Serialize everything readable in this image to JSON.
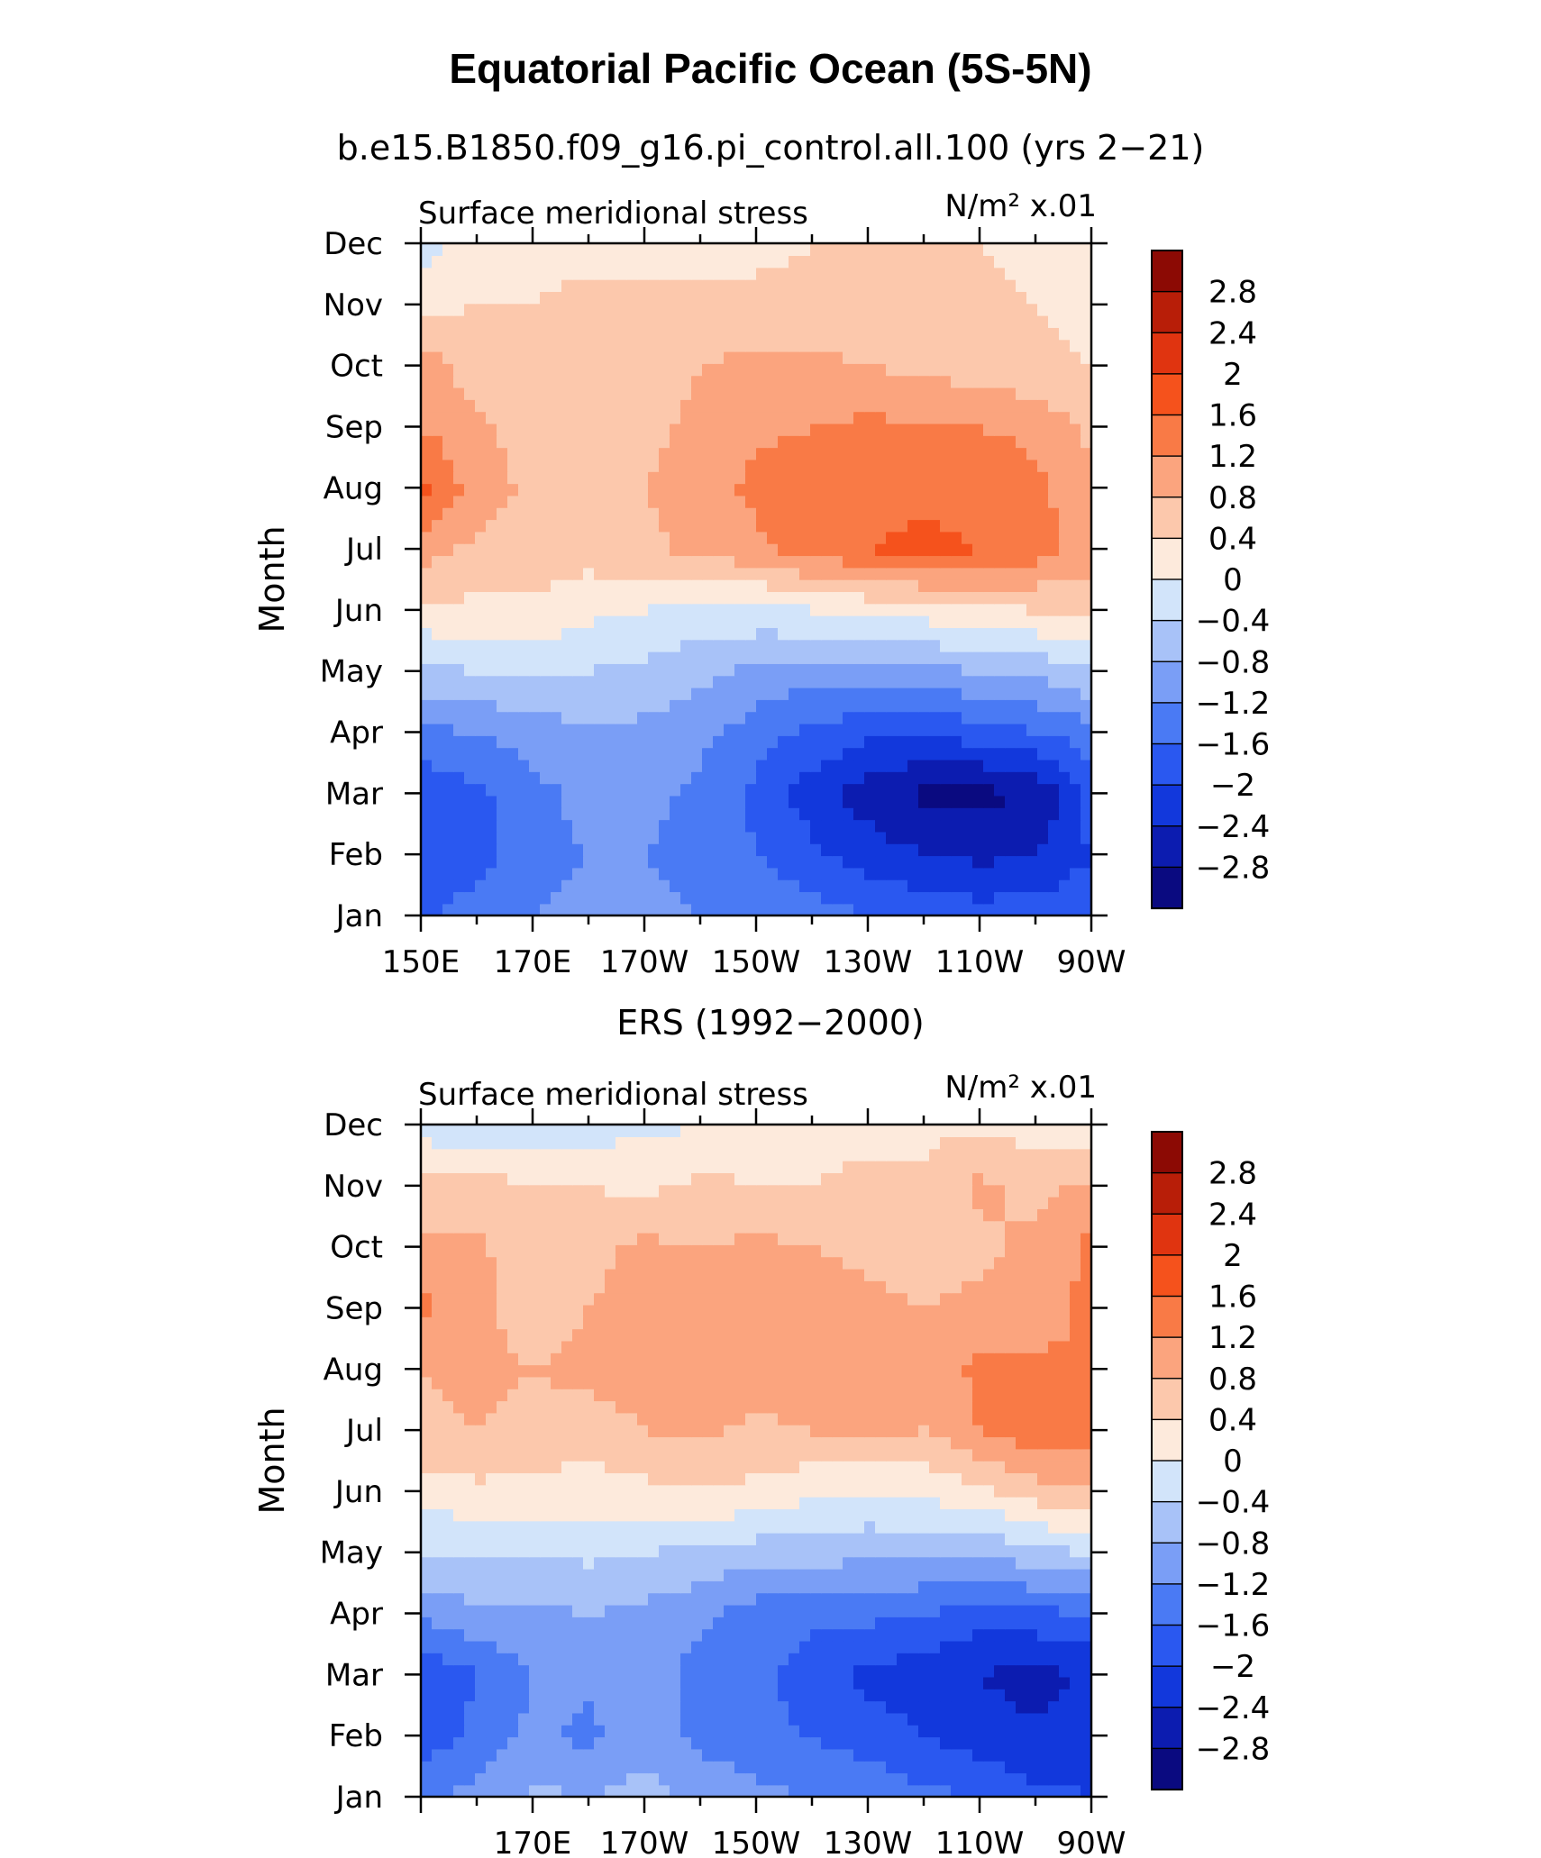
{
  "figure": {
    "title": "Equatorial Pacific Ocean (5S-5N)"
  },
  "palette": [
    "#0a0a80",
    "#0c1cb0",
    "#1238dc",
    "#2a58f0",
    "#4a7af4",
    "#7a9ef6",
    "#a8c2f8",
    "#d2e4fa",
    "#fdeadc",
    "#fcc8ac",
    "#fba47e",
    "#f97a46",
    "#f5521c",
    "#e03410",
    "#b81e08",
    "#8c0a04"
  ],
  "chart_data": [
    {
      "type": "contour",
      "title": "b.e15.B1850.f09_g16.pi_control.all.100 (yrs 2−21)",
      "left_label": "Surface meridional stress",
      "units_label": "N/m² x.01",
      "ylabel": "Month",
      "y_ticks": [
        "Jan",
        "Feb",
        "Mar",
        "Apr",
        "May",
        "Jun",
        "Jul",
        "Aug",
        "Sep",
        "Oct",
        "Nov",
        "Dec"
      ],
      "x_ticks": [
        "150E",
        "170E",
        "170W",
        "150W",
        "130W",
        "110W",
        "90W"
      ],
      "colorbar_levels": [
        "2.8",
        "2.4",
        "2",
        "1.6",
        "1.2",
        "0.8",
        "0.4",
        "0",
        "−0.4",
        "−0.8",
        "−1.2",
        "−1.6",
        "−2",
        "−2.4",
        "−2.8"
      ],
      "x": [
        150,
        160,
        170,
        180,
        190,
        200,
        210,
        220,
        230,
        240,
        250,
        260,
        270
      ],
      "y": [
        "Jan",
        "Feb",
        "Mar",
        "Apr",
        "May",
        "Jun",
        "Jul",
        "Aug",
        "Sep",
        "Oct",
        "Nov",
        "Dec"
      ],
      "z": [
        [
          -1.7,
          -1.4,
          -1.2,
          -1.1,
          -1.1,
          -1.2,
          -1.3,
          -1.4,
          -1.6,
          -1.7,
          -1.8,
          -1.8,
          -1.7
        ],
        [
          -1.9,
          -1.8,
          -1.3,
          -1.2,
          -1.2,
          -1.3,
          -1.6,
          -1.9,
          -2.2,
          -2.4,
          -2.5,
          -2.4,
          -2.0
        ],
        [
          -1.9,
          -1.7,
          -1.3,
          -1.1,
          -1.1,
          -1.3,
          -1.7,
          -2.2,
          -2.6,
          -2.9,
          -2.9,
          -2.8,
          -1.8
        ],
        [
          -1.3,
          -1.2,
          -1.0,
          -0.9,
          -0.9,
          -1.1,
          -1.4,
          -1.7,
          -1.9,
          -1.9,
          -1.8,
          -1.6,
          -1.4
        ],
        [
          -0.5,
          -0.4,
          -0.3,
          -0.4,
          -0.5,
          -0.7,
          -0.9,
          -1.0,
          -1.0,
          -0.9,
          -0.8,
          -0.7,
          -0.4
        ],
        [
          0.3,
          0.3,
          0.3,
          0.1,
          0.0,
          -0.1,
          -0.1,
          0.0,
          0.1,
          0.2,
          0.3,
          0.4,
          0.5
        ],
        [
          1.0,
          0.7,
          0.7,
          0.6,
          0.7,
          0.9,
          1.1,
          1.4,
          1.6,
          1.7,
          1.6,
          1.4,
          1.0
        ],
        [
          1.7,
          1.0,
          0.7,
          0.5,
          0.8,
          1.0,
          1.3,
          1.5,
          1.5,
          1.5,
          1.5,
          1.3,
          0.9
        ],
        [
          1.2,
          0.9,
          0.6,
          0.5,
          0.7,
          0.9,
          1.1,
          1.2,
          1.3,
          1.2,
          1.2,
          1.1,
          0.7
        ],
        [
          1.0,
          0.6,
          0.5,
          0.5,
          0.6,
          0.8,
          0.9,
          0.9,
          0.8,
          0.7,
          0.6,
          0.5,
          0.4
        ],
        [
          0.3,
          0.4,
          0.4,
          0.5,
          0.5,
          0.5,
          0.5,
          0.5,
          0.5,
          0.5,
          0.5,
          0.4,
          0.3
        ],
        [
          -0.2,
          0.2,
          0.3,
          0.3,
          0.3,
          0.3,
          0.3,
          0.4,
          0.4,
          0.4,
          0.4,
          0.3,
          0.2
        ]
      ]
    },
    {
      "type": "contour",
      "title": "ERS (1992−2000)",
      "left_label": "Surface meridional stress",
      "units_label": "N/m² x.01",
      "ylabel": "Month",
      "y_ticks": [
        "Jan",
        "Feb",
        "Mar",
        "Apr",
        "May",
        "Jun",
        "Jul",
        "Aug",
        "Sep",
        "Oct",
        "Nov",
        "Dec"
      ],
      "x_ticks": [
        "170E",
        "170W",
        "150W",
        "130W",
        "110W",
        "90W"
      ],
      "colorbar_levels": [
        "2.8",
        "2.4",
        "2",
        "1.6",
        "1.2",
        "0.8",
        "0.4",
        "0",
        "−0.4",
        "−0.8",
        "−1.2",
        "−1.6",
        "−2",
        "−2.4",
        "−2.8"
      ],
      "x": [
        150,
        160,
        170,
        180,
        190,
        200,
        210,
        220,
        230,
        240,
        250,
        260,
        270
      ],
      "y": [
        "Jan",
        "Feb",
        "Mar",
        "Apr",
        "May",
        "Jun",
        "Jul",
        "Aug",
        "Sep",
        "Oct",
        "Nov",
        "Dec"
      ],
      "z": [
        [
          -1.2,
          -1.1,
          -0.7,
          -0.8,
          -0.6,
          -0.9,
          -1.1,
          -1.2,
          -1.3,
          -1.5,
          -1.6,
          -1.9,
          -2.0
        ],
        [
          -1.9,
          -1.5,
          -1.1,
          -1.3,
          -1.0,
          -1.3,
          -1.5,
          -1.6,
          -1.8,
          -2.0,
          -2.2,
          -2.3,
          -2.1
        ],
        [
          -2.0,
          -1.6,
          -1.2,
          -1.1,
          -0.9,
          -1.4,
          -1.5,
          -1.8,
          -2.1,
          -2.2,
          -2.4,
          -2.6,
          -2.3
        ],
        [
          -1.1,
          -0.9,
          -0.9,
          -0.8,
          -0.9,
          -1.1,
          -1.4,
          -1.5,
          -1.5,
          -1.6,
          -1.8,
          -1.7,
          -1.6
        ],
        [
          -0.4,
          -0.4,
          -0.4,
          -0.3,
          -0.4,
          -0.5,
          -0.6,
          -0.6,
          -0.7,
          -0.7,
          -0.8,
          -0.5,
          -0.4
        ],
        [
          0.2,
          0.3,
          0.3,
          0.2,
          0.3,
          0.4,
          0.3,
          0.1,
          0.0,
          0.1,
          0.3,
          0.6,
          0.8
        ],
        [
          0.7,
          0.8,
          0.7,
          0.6,
          0.8,
          0.9,
          0.7,
          0.8,
          0.9,
          0.8,
          1.2,
          1.5,
          1.4
        ],
        [
          0.8,
          0.9,
          0.8,
          0.9,
          1.0,
          1.0,
          1.0,
          1.1,
          1.0,
          0.9,
          1.3,
          1.3,
          1.2
        ],
        [
          1.3,
          0.9,
          0.6,
          0.8,
          0.9,
          0.9,
          1.0,
          1.0,
          0.9,
          0.8,
          0.9,
          1.0,
          1.3
        ],
        [
          0.9,
          0.9,
          0.5,
          0.7,
          0.9,
          0.8,
          0.9,
          0.8,
          0.7,
          0.6,
          0.7,
          0.9,
          1.3
        ],
        [
          0.5,
          0.6,
          0.4,
          0.4,
          0.3,
          0.5,
          0.4,
          0.4,
          0.6,
          0.5,
          0.9,
          0.7,
          0.9
        ],
        [
          -0.2,
          -0.3,
          -0.2,
          -0.2,
          -0.1,
          0.0,
          0.1,
          0.1,
          0.2,
          0.3,
          0.3,
          0.2,
          0.1
        ]
      ]
    }
  ]
}
